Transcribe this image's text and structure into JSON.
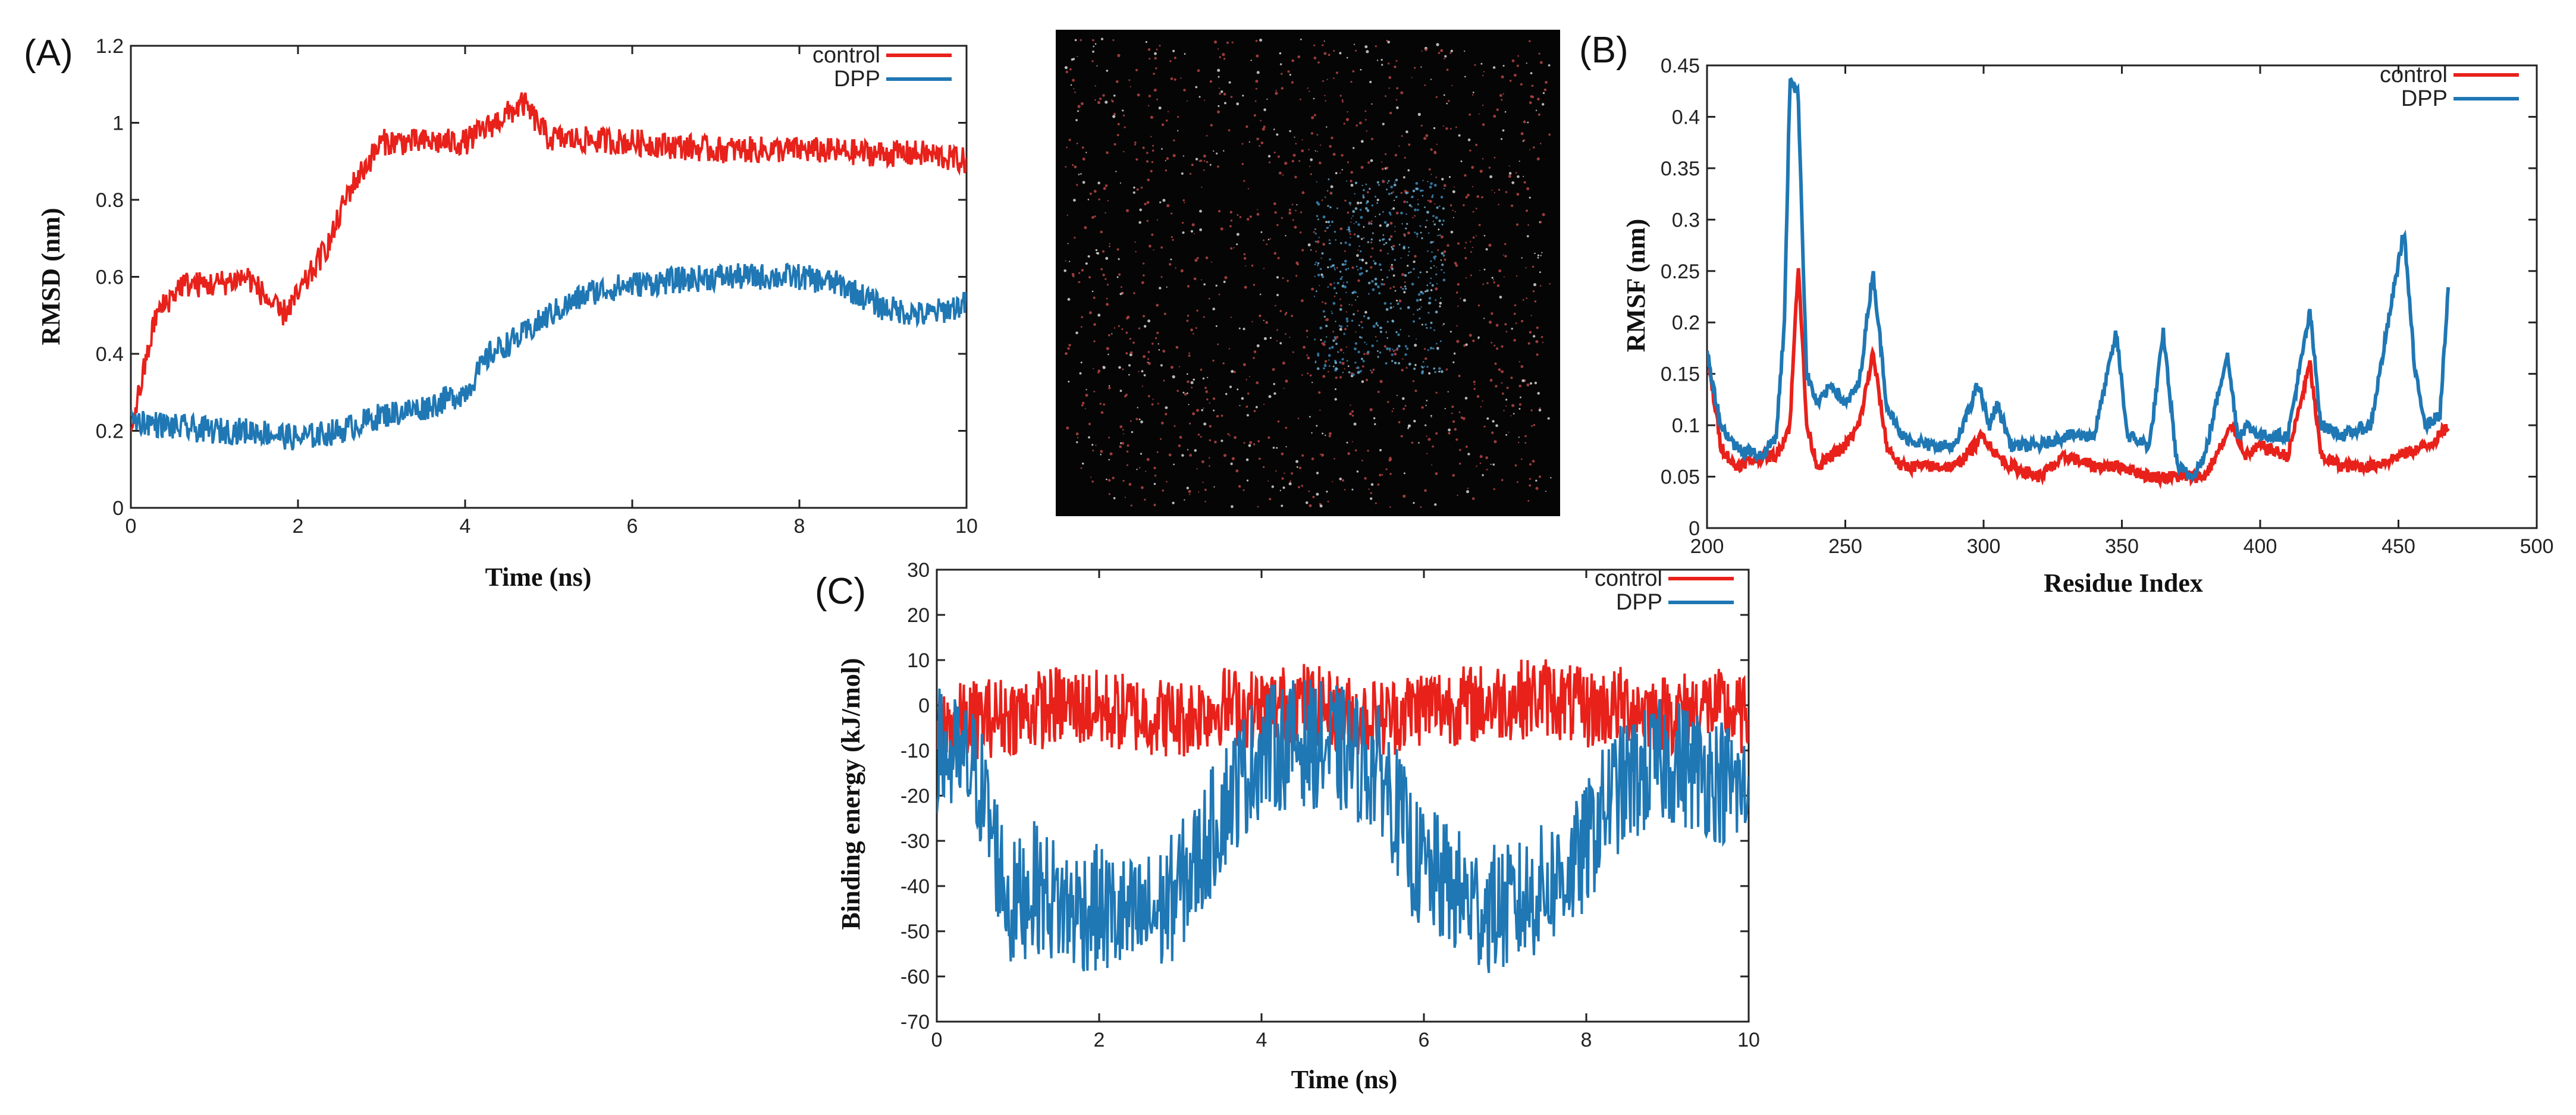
{
  "colors": {
    "control": "#e8211b",
    "dpp": "#1f77b4"
  },
  "chart_data": [
    {
      "id": "A",
      "type": "line",
      "panel_label": "(A)",
      "title": "",
      "xlabel": "Time (ns)",
      "ylabel": "RMSD (nm)",
      "xlim": [
        0,
        10
      ],
      "ylim": [
        0,
        1.2
      ],
      "xticks": [
        0,
        2,
        4,
        6,
        8,
        10
      ],
      "yticks": [
        0,
        0.2,
        0.4,
        0.6,
        0.8,
        1,
        1.2
      ],
      "legend": "top-right",
      "series": [
        {
          "name": "control",
          "x": [
            0,
            0.3,
            0.6,
            1.0,
            1.4,
            1.8,
            2.0,
            2.4,
            2.6,
            3.0,
            3.5,
            4.0,
            4.7,
            5.0,
            6.0,
            7.0,
            8.0,
            9.0,
            9.5,
            10
          ],
          "y": [
            0.2,
            0.5,
            0.58,
            0.58,
            0.6,
            0.5,
            0.55,
            0.7,
            0.82,
            0.95,
            0.95,
            0.95,
            1.05,
            0.96,
            0.95,
            0.93,
            0.93,
            0.92,
            0.92,
            0.9
          ]
        },
        {
          "name": "DPP",
          "x": [
            0,
            0.5,
            1.0,
            1.5,
            2.0,
            2.5,
            3.0,
            3.5,
            4.0,
            4.3,
            4.7,
            5.0,
            5.5,
            6.0,
            7.0,
            8.0,
            8.5,
            9.0,
            9.5,
            10
          ],
          "y": [
            0.23,
            0.21,
            0.2,
            0.2,
            0.18,
            0.2,
            0.24,
            0.26,
            0.3,
            0.4,
            0.45,
            0.5,
            0.56,
            0.58,
            0.6,
            0.6,
            0.58,
            0.52,
            0.5,
            0.53
          ]
        }
      ]
    },
    {
      "id": "B",
      "type": "line",
      "panel_label": "(B)",
      "title": "",
      "xlabel": "Residue Index",
      "ylabel": "RMSF (nm)",
      "xlim": [
        200,
        500
      ],
      "ylim": [
        0,
        0.45
      ],
      "xticks": [
        200,
        250,
        300,
        350,
        400,
        450,
        500
      ],
      "yticks": [
        0,
        0.05,
        0.1,
        0.15,
        0.2,
        0.25,
        0.3,
        0.35,
        0.4,
        0.45
      ],
      "legend": "top-right",
      "series": [
        {
          "name": "control",
          "x": [
            200,
            205,
            210,
            220,
            225,
            230,
            233,
            236,
            240,
            250,
            255,
            260,
            265,
            270,
            280,
            290,
            300,
            305,
            310,
            320,
            330,
            340,
            350,
            360,
            370,
            375,
            380,
            390,
            395,
            400,
            410,
            418,
            422,
            430,
            440,
            450,
            460,
            465,
            468
          ],
          "y": [
            0.17,
            0.08,
            0.06,
            0.07,
            0.07,
            0.1,
            0.26,
            0.1,
            0.06,
            0.08,
            0.1,
            0.17,
            0.08,
            0.06,
            0.06,
            0.06,
            0.09,
            0.07,
            0.06,
            0.05,
            0.07,
            0.06,
            0.06,
            0.05,
            0.05,
            0.05,
            0.05,
            0.1,
            0.07,
            0.08,
            0.07,
            0.16,
            0.07,
            0.06,
            0.06,
            0.07,
            0.08,
            0.09,
            0.1
          ]
        },
        {
          "name": "DPP",
          "x": [
            200,
            205,
            210,
            220,
            225,
            228,
            230,
            233,
            236,
            240,
            245,
            250,
            255,
            260,
            265,
            270,
            280,
            290,
            298,
            302,
            305,
            310,
            320,
            330,
            340,
            348,
            352,
            360,
            365,
            370,
            375,
            380,
            388,
            392,
            395,
            400,
            410,
            418,
            422,
            430,
            440,
            452,
            456,
            460,
            465,
            468
          ],
          "y": [
            0.17,
            0.1,
            0.08,
            0.07,
            0.09,
            0.2,
            0.44,
            0.42,
            0.15,
            0.12,
            0.14,
            0.12,
            0.14,
            0.25,
            0.12,
            0.09,
            0.08,
            0.08,
            0.14,
            0.1,
            0.12,
            0.08,
            0.08,
            0.09,
            0.09,
            0.19,
            0.09,
            0.08,
            0.19,
            0.06,
            0.05,
            0.07,
            0.17,
            0.09,
            0.1,
            0.09,
            0.09,
            0.21,
            0.1,
            0.09,
            0.1,
            0.29,
            0.15,
            0.1,
            0.11,
            0.23
          ]
        }
      ]
    },
    {
      "id": "C",
      "type": "line",
      "panel_label": "(C)",
      "title": "",
      "xlabel": "Time (ns)",
      "ylabel": "Binding energy (kJ/mol)",
      "xlim": [
        0,
        10
      ],
      "ylim": [
        -70,
        30
      ],
      "xticks": [
        0,
        2,
        4,
        6,
        8,
        10
      ],
      "yticks": [
        -70,
        -60,
        -50,
        -40,
        -30,
        -20,
        -10,
        0,
        10,
        20,
        30
      ],
      "legend": "top-right",
      "series": [
        {
          "name": "control",
          "x": [
            0,
            0.5,
            1.0,
            1.5,
            2.0,
            2.5,
            3.0,
            3.5,
            4.0,
            4.5,
            5.0,
            5.5,
            6.0,
            6.5,
            7.0,
            7.5,
            8.0,
            8.5,
            9.0,
            9.5,
            10
          ],
          "y": [
            -5,
            -3,
            -2,
            0,
            -1,
            -2,
            -3,
            0,
            -1,
            1,
            -2,
            -3,
            0,
            0,
            1,
            2,
            -1,
            0,
            -2,
            0,
            -3
          ]
        },
        {
          "name": "DPP",
          "x": [
            0,
            0.5,
            0.9,
            1.2,
            1.6,
            2.0,
            2.4,
            2.8,
            3.2,
            3.6,
            4.0,
            4.5,
            5.0,
            5.5,
            5.9,
            6.3,
            6.7,
            7.1,
            7.5,
            7.9,
            8.3,
            8.7,
            9.0,
            9.5,
            10
          ],
          "y": [
            -10,
            -15,
            -45,
            -40,
            -45,
            -45,
            -48,
            -45,
            -35,
            -20,
            -10,
            -8,
            -10,
            -15,
            -35,
            -40,
            -45,
            -45,
            -40,
            -35,
            -20,
            -15,
            -12,
            -15,
            -20
          ]
        }
      ]
    }
  ],
  "simulation_image": {
    "description_icon": "molecular-simulation-box"
  }
}
